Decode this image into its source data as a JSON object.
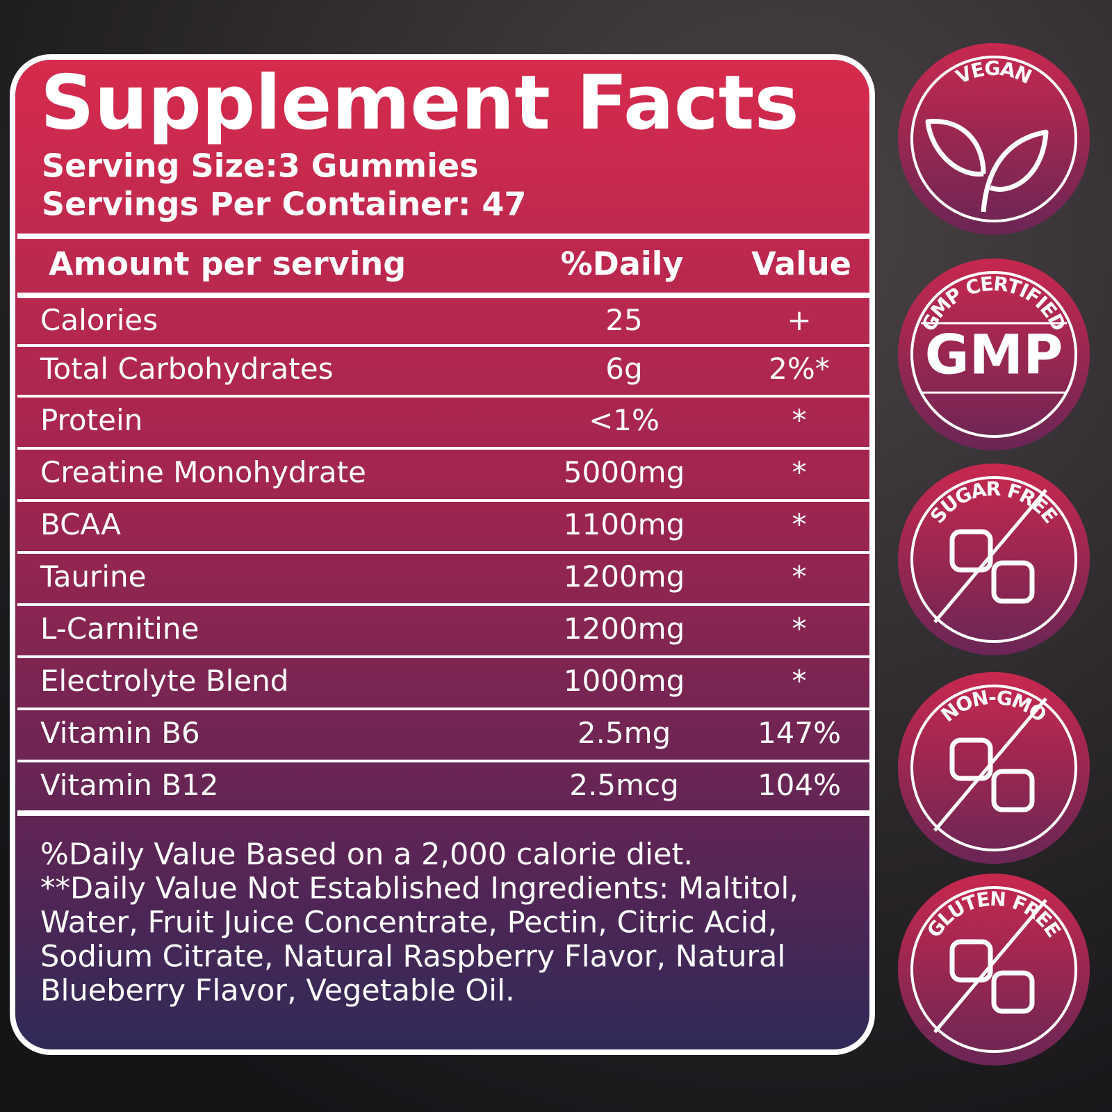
{
  "title": "Supplement Facts",
  "serving_size": "Serving Size:3 Gummies",
  "servings_per_container": "Servings Per Container: 47",
  "table": {
    "header": [
      "Amount per serving",
      "%Daily",
      "Value"
    ],
    "rows": [
      [
        "Calories",
        "25",
        "+"
      ],
      [
        "Total Carbohydrates",
        "6g",
        "2%*"
      ],
      [
        "Protein",
        "<1%",
        "*"
      ],
      [
        "Creatine Monohydrate",
        "5000mg",
        "*"
      ],
      [
        "BCAA",
        "1100mg",
        "*"
      ],
      [
        "Taurine",
        "1200mg",
        "*"
      ],
      [
        "L-Carnitine",
        "1200mg",
        "*"
      ],
      [
        "Electrolyte Blend",
        "1000mg",
        "*"
      ],
      [
        "Vitamin B6",
        "2.5mg",
        "147%"
      ],
      [
        "Vitamin B12",
        "2.5mcg",
        "104%"
      ]
    ]
  },
  "footnote": [
    "%Daily Value Based on a 2,000 calorie diet.",
    "**Daily Value Not Established Ingredients: Maltitol,",
    "Water, Fruit Juice Concentrate, Pectin, Citric Acid,",
    "Sodium Citrate, Natural Raspberry Flavor, Natural",
    "Blueberry Flavor, Vegetable Oil."
  ],
  "badges": [
    {
      "label": "VEGAN"
    },
    {
      "label": "GMP CERTIFIED",
      "center": "GMP"
    },
    {
      "label": "SUGAR FREE"
    },
    {
      "label": "NON-GMO"
    },
    {
      "label": "GLUTEN FREE"
    }
  ]
}
